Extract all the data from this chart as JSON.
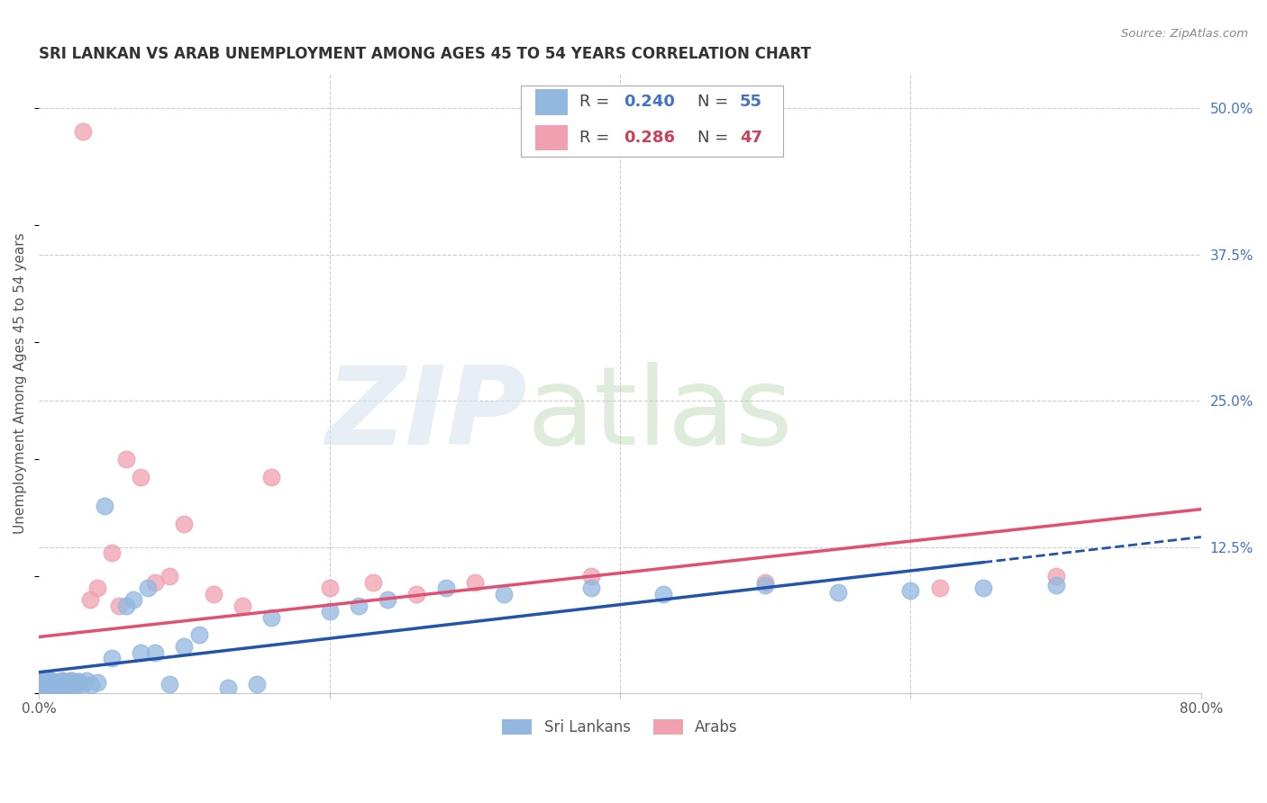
{
  "title": "SRI LANKAN VS ARAB UNEMPLOYMENT AMONG AGES 45 TO 54 YEARS CORRELATION CHART",
  "source": "Source: ZipAtlas.com",
  "ylabel": "Unemployment Among Ages 45 to 54 years",
  "legend_labels": [
    "Sri Lankans",
    "Arabs"
  ],
  "legend_R_sri": "0.240",
  "legend_N_sri": "55",
  "legend_R_arab": "0.286",
  "legend_N_arab": "47",
  "sri_lankan_color": "#92b8e0",
  "arab_color": "#f0a0b0",
  "sri_lankan_line_color": "#2255aa",
  "arab_line_color": "#e05070",
  "background_color": "#ffffff",
  "grid_color": "#c8c8c8",
  "yticks": [
    0.0,
    0.125,
    0.25,
    0.375,
    0.5
  ],
  "ytick_labels": [
    "",
    "12.5%",
    "25.0%",
    "37.5%",
    "50.0%"
  ],
  "xlim": [
    0.0,
    0.8
  ],
  "ylim": [
    0.0,
    0.53
  ],
  "sri_lankans_x": [
    0.001,
    0.002,
    0.003,
    0.004,
    0.005,
    0.006,
    0.007,
    0.008,
    0.009,
    0.01,
    0.011,
    0.012,
    0.013,
    0.014,
    0.015,
    0.016,
    0.017,
    0.018,
    0.019,
    0.02,
    0.021,
    0.022,
    0.023,
    0.024,
    0.025,
    0.027,
    0.03,
    0.033,
    0.036,
    0.04,
    0.045,
    0.05,
    0.06,
    0.065,
    0.07,
    0.075,
    0.08,
    0.09,
    0.1,
    0.11,
    0.13,
    0.15,
    0.16,
    0.2,
    0.22,
    0.24,
    0.28,
    0.32,
    0.38,
    0.43,
    0.5,
    0.55,
    0.6,
    0.65,
    0.7
  ],
  "sri_lankans_y": [
    0.01,
    0.005,
    0.008,
    0.012,
    0.007,
    0.009,
    0.006,
    0.011,
    0.008,
    0.01,
    0.007,
    0.009,
    0.006,
    0.01,
    0.008,
    0.011,
    0.007,
    0.009,
    0.006,
    0.01,
    0.008,
    0.011,
    0.007,
    0.009,
    0.006,
    0.01,
    0.008,
    0.011,
    0.007,
    0.009,
    0.16,
    0.03,
    0.075,
    0.08,
    0.035,
    0.09,
    0.035,
    0.008,
    0.04,
    0.05,
    0.005,
    0.008,
    0.065,
    0.07,
    0.075,
    0.08,
    0.09,
    0.085,
    0.09,
    0.085,
    0.092,
    0.086,
    0.088,
    0.09,
    0.092
  ],
  "arabs_x": [
    0.001,
    0.002,
    0.003,
    0.004,
    0.005,
    0.006,
    0.007,
    0.008,
    0.009,
    0.01,
    0.011,
    0.012,
    0.013,
    0.014,
    0.015,
    0.016,
    0.017,
    0.018,
    0.019,
    0.02,
    0.021,
    0.022,
    0.023,
    0.024,
    0.025,
    0.027,
    0.03,
    0.035,
    0.04,
    0.05,
    0.055,
    0.06,
    0.07,
    0.08,
    0.09,
    0.1,
    0.12,
    0.14,
    0.16,
    0.2,
    0.23,
    0.26,
    0.3,
    0.38,
    0.5,
    0.62,
    0.7
  ],
  "arabs_y": [
    0.01,
    0.005,
    0.008,
    0.012,
    0.007,
    0.009,
    0.006,
    0.011,
    0.008,
    0.01,
    0.007,
    0.009,
    0.006,
    0.01,
    0.008,
    0.011,
    0.007,
    0.009,
    0.006,
    0.01,
    0.008,
    0.011,
    0.007,
    0.009,
    0.006,
    0.01,
    0.48,
    0.08,
    0.09,
    0.12,
    0.075,
    0.2,
    0.185,
    0.095,
    0.1,
    0.145,
    0.085,
    0.075,
    0.185,
    0.09,
    0.095,
    0.085,
    0.095,
    0.1,
    0.095,
    0.09,
    0.1
  ],
  "watermark_zip": "ZIP",
  "watermark_atlas": "atlas",
  "title_fontsize": 12,
  "axis_label_fontsize": 11,
  "tick_fontsize": 11
}
